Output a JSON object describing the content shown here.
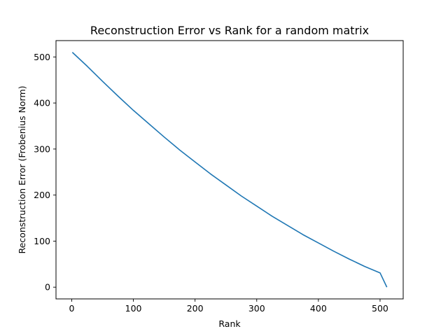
{
  "chart_data": {
    "type": "line",
    "title": "Reconstruction Error vs Rank for a random matrix",
    "xlabel": "Rank",
    "ylabel": "Reconstruction Error (Frobenius Norm)",
    "xlim": [
      -25.5,
      537.5
    ],
    "ylim": [
      -25.5,
      535.5
    ],
    "xticks": [
      0,
      100,
      200,
      300,
      400,
      500
    ],
    "yticks": [
      0,
      100,
      200,
      300,
      400,
      500
    ],
    "grid": false,
    "series": [
      {
        "color": "#1f77b4",
        "x": [
          1,
          25,
          50,
          75,
          100,
          125,
          150,
          175,
          200,
          225,
          250,
          275,
          300,
          325,
          350,
          375,
          400,
          425,
          450,
          475,
          500,
          511
        ],
        "y": [
          510,
          480,
          447,
          415,
          384,
          355,
          326,
          298,
          272,
          246,
          222,
          198,
          176,
          154,
          134,
          114,
          96,
          78,
          61,
          45,
          31,
          0
        ]
      }
    ]
  }
}
